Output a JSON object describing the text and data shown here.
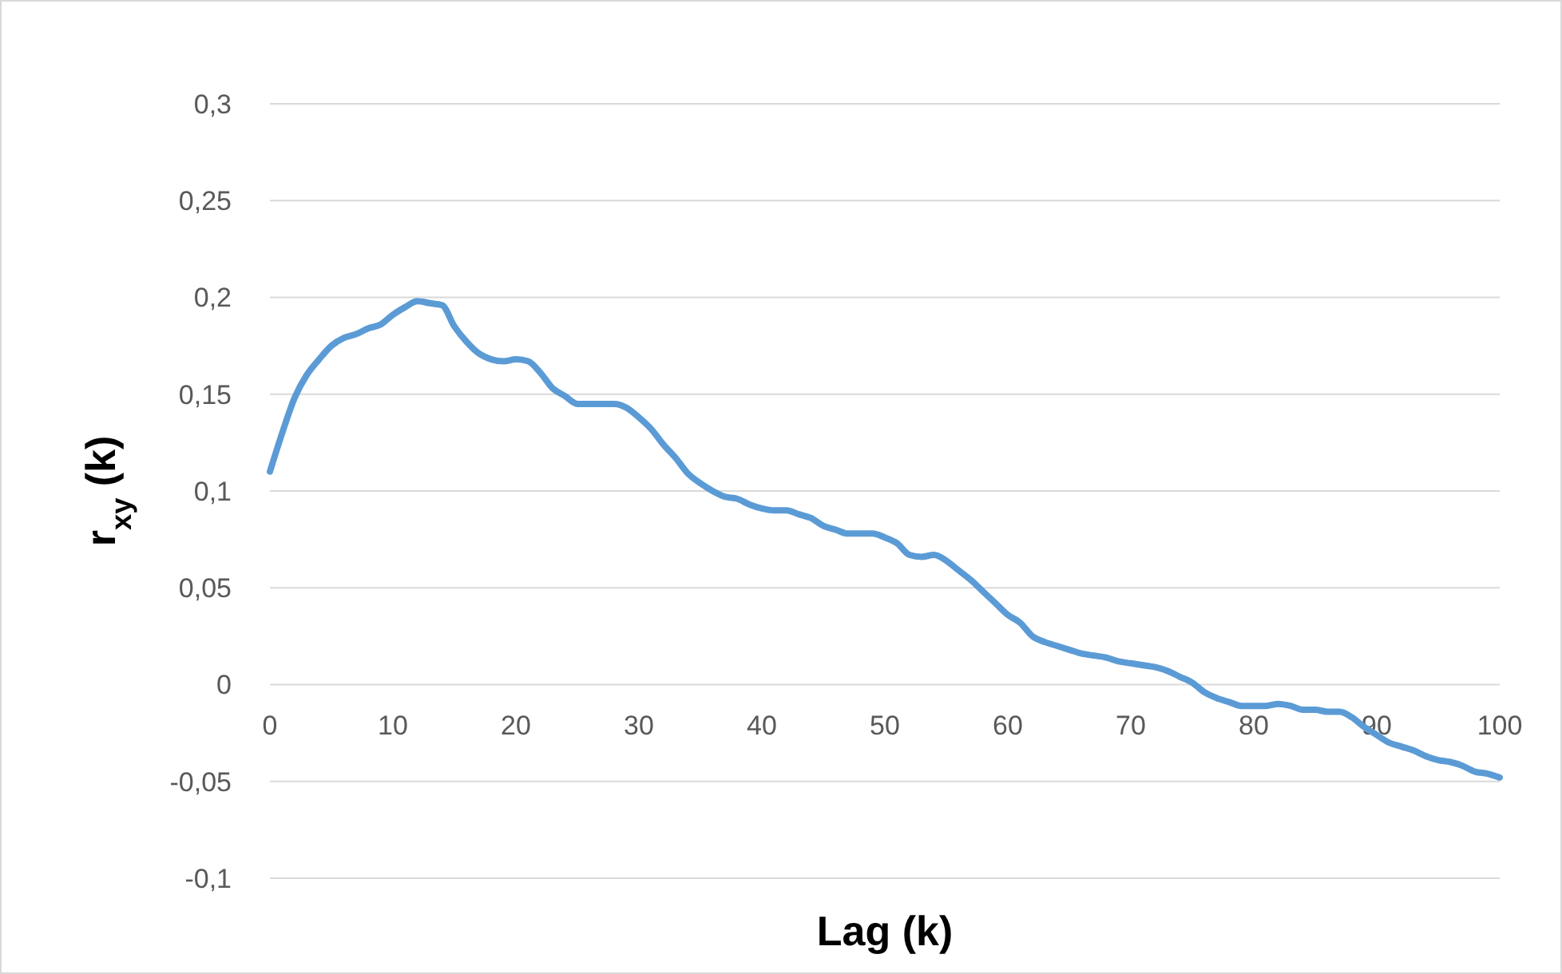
{
  "chart_data": {
    "type": "line",
    "xlabel": "Lag (k)",
    "ylabel": "r$_{xy}$ (k)",
    "x": [
      0,
      1,
      2,
      3,
      4,
      5,
      6,
      7,
      8,
      9,
      10,
      11,
      12,
      13,
      14,
      15,
      16,
      17,
      18,
      19,
      20,
      21,
      22,
      23,
      24,
      25,
      26,
      27,
      28,
      29,
      30,
      31,
      32,
      33,
      34,
      35,
      36,
      37,
      38,
      39,
      40,
      41,
      42,
      43,
      44,
      45,
      46,
      47,
      48,
      49,
      50,
      51,
      52,
      53,
      54,
      55,
      56,
      57,
      58,
      59,
      60,
      61,
      62,
      63,
      64,
      65,
      66,
      67,
      68,
      69,
      70,
      71,
      72,
      73,
      74,
      75,
      76,
      77,
      78,
      79,
      80,
      81,
      82,
      83,
      84,
      85,
      86,
      87,
      88,
      89,
      90,
      91,
      92,
      93,
      94,
      95,
      96,
      97,
      98,
      99,
      100
    ],
    "series": [
      {
        "color": "#5b9bd5",
        "values": [
          0.11,
          0.13,
          0.148,
          0.16,
          0.168,
          0.175,
          0.179,
          0.181,
          0.184,
          0.186,
          0.191,
          0.195,
          0.198,
          0.197,
          0.196,
          0.185,
          0.177,
          0.171,
          0.168,
          0.167,
          0.168,
          0.167,
          0.161,
          0.153,
          0.149,
          0.145,
          0.145,
          0.145,
          0.145,
          0.143,
          0.138,
          0.132,
          0.124,
          0.117,
          0.109,
          0.104,
          0.1,
          0.097,
          0.096,
          0.093,
          0.091,
          0.09,
          0.09,
          0.088,
          0.086,
          0.082,
          0.08,
          0.078,
          0.078,
          0.078,
          0.076,
          0.073,
          0.067,
          0.066,
          0.067,
          0.064,
          0.059,
          0.054,
          0.048,
          0.042,
          0.036,
          0.032,
          0.025,
          0.022,
          0.02,
          0.018,
          0.016,
          0.015,
          0.014,
          0.012,
          0.011,
          0.01,
          0.009,
          0.007,
          0.004,
          0.001,
          -0.004,
          -0.007,
          -0.009,
          -0.011,
          -0.011,
          -0.011,
          -0.01,
          -0.011,
          -0.013,
          -0.013,
          -0.014,
          -0.014,
          -0.017,
          -0.022,
          -0.026,
          -0.03,
          -0.032,
          -0.034,
          -0.037,
          -0.039,
          -0.04,
          -0.042,
          -0.045,
          -0.046,
          -0.048
        ]
      }
    ],
    "xlim": [
      0,
      100
    ],
    "xticks": [
      0,
      10,
      20,
      30,
      40,
      50,
      60,
      70,
      80,
      90,
      100
    ],
    "ylim": [
      -0.1,
      0.3
    ],
    "yticks": [
      {
        "value": -0.1,
        "label": "-0,1"
      },
      {
        "value": -0.05,
        "label": "-0,05"
      },
      {
        "value": 0,
        "label": "0"
      },
      {
        "value": 0.05,
        "label": "0,05"
      },
      {
        "value": 0.1,
        "label": "0,1"
      },
      {
        "value": 0.15,
        "label": "0,15"
      },
      {
        "value": 0.2,
        "label": "0,2"
      },
      {
        "value": 0.25,
        "label": "0,25"
      },
      {
        "value": 0.3,
        "label": "0,3"
      }
    ],
    "grid": "y",
    "marker": "none",
    "line_style": "solid"
  }
}
